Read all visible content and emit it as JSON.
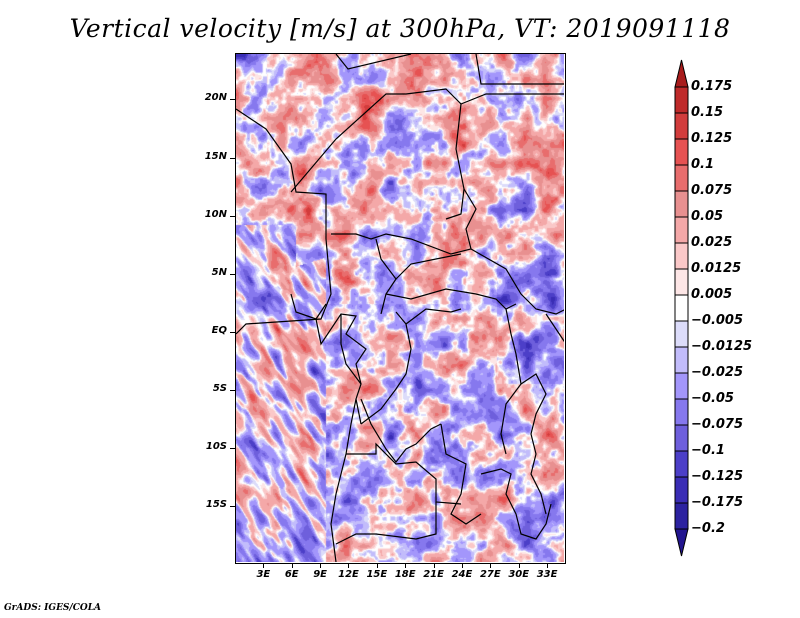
{
  "chart_data": {
    "type": "heatmap",
    "title": "Vertical velocity [m/s] at 300hPa, VT: 2019091118",
    "xlabel": "",
    "ylabel": "",
    "x_range_deg_east": [
      0,
      35
    ],
    "y_range_deg_north": [
      -20,
      24
    ],
    "x_ticks": [
      "3E",
      "6E",
      "9E",
      "12E",
      "15E",
      "18E",
      "21E",
      "24E",
      "27E",
      "30E",
      "33E"
    ],
    "x_tick_values": [
      3,
      6,
      9,
      12,
      15,
      18,
      21,
      24,
      27,
      30,
      33
    ],
    "y_ticks": [
      "20N",
      "15N",
      "10N",
      "5N",
      "EQ",
      "5S",
      "10S",
      "15S"
    ],
    "y_tick_values": [
      20,
      15,
      10,
      5,
      0,
      -5,
      -10,
      -15
    ],
    "grid": false,
    "colorbar": {
      "placement": "right",
      "levels": [
        "0.175",
        "0.15",
        "0.125",
        "0.1",
        "0.075",
        "0.05",
        "0.025",
        "0.0125",
        "0.005",
        "-0.005",
        "-0.0125",
        "-0.025",
        "-0.05",
        "-0.075",
        "-0.1",
        "-0.125",
        "-0.175",
        "-0.2"
      ],
      "colors": [
        "#a81c1c",
        "#bf2a2a",
        "#d23c3c",
        "#e65252",
        "#e86d6d",
        "#e89090",
        "#f4a8a8",
        "#fac8c8",
        "#fde6e6",
        "#ffffff",
        "#dcdcfa",
        "#c2bcfb",
        "#a396fb",
        "#8678ee",
        "#6e5fdc",
        "#4c3fc8",
        "#3a2db5",
        "#2c22a0",
        "#22158f"
      ],
      "extend": "both"
    },
    "description": "Gridded field of 300hPa vertical velocity over central Africa; positive (red) and negative (blue) values interleaved with SW-NE banding over the South Atlantic."
  },
  "footer": "GrADS: IGES/COLA"
}
